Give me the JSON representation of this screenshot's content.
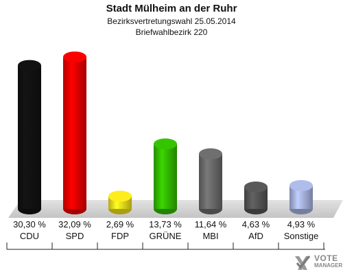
{
  "title": "Stadt Mülheim an der Ruhr",
  "subtitle1": "Bezirksvertretungswahl 25.05.2014",
  "subtitle2": "Briefwahlbezirk 220",
  "brand": {
    "line1": "VOTE",
    "line2": "MANAGER",
    "icon": "check-cross-logo-icon"
  },
  "chart_data": {
    "type": "bar",
    "title": "Stadt Mülheim an der Ruhr",
    "categories": [
      "CDU",
      "SPD",
      "FDP",
      "GRÜNE",
      "MBI",
      "AfD",
      "Sonstige"
    ],
    "values": [
      30.3,
      32.09,
      2.69,
      13.73,
      11.64,
      4.63,
      4.93
    ],
    "value_labels": [
      "30,30 %",
      "32,09 %",
      "2,69 %",
      "13,73 %",
      "11,64 %",
      "4,63 %",
      "4,93 %"
    ],
    "colors": [
      "#111111",
      "#ee0000",
      "#f2e21c",
      "#33bb00",
      "#6a6a6a",
      "#555555",
      "#a8b4e0"
    ],
    "ylim": [
      0,
      34
    ],
    "grid": false,
    "legend": "none"
  }
}
